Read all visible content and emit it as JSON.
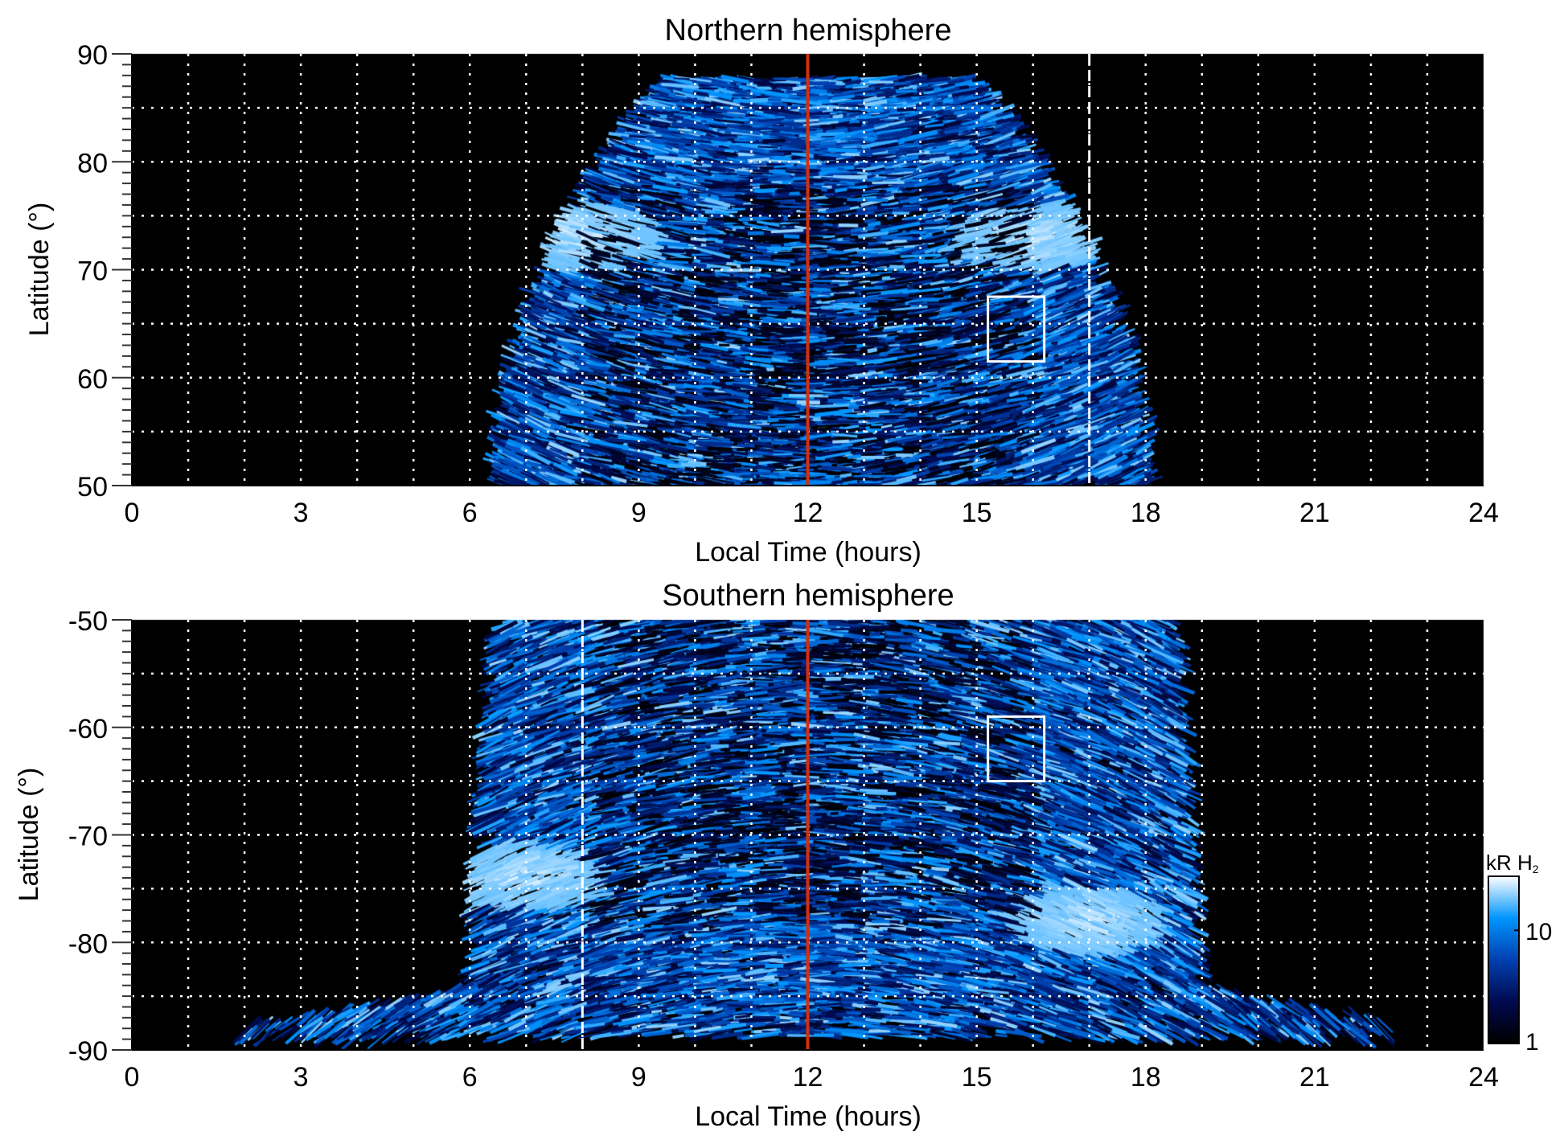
{
  "chart_data": [
    {
      "type": "heatmap",
      "title": "Northern hemisphere",
      "xlabel": "Local Time (hours)",
      "ylabel": "Latitude (°)",
      "xlim": [
        0,
        24
      ],
      "ylim": [
        50,
        90
      ],
      "xticks": [
        "0",
        "3",
        "6",
        "9",
        "12",
        "15",
        "18",
        "21",
        "24"
      ],
      "yticks": [
        "50",
        "60",
        "70",
        "80",
        "90"
      ],
      "grid": true,
      "annotations": {
        "red_line_local_time": 12,
        "dashed_line_local_time": 17,
        "box": {
          "lt": [
            15.2,
            16.2
          ],
          "lat": [
            61.5,
            67.5
          ]
        }
      },
      "emission_extent": {
        "lt_at_lat50": [
          6.5,
          18
        ],
        "lt_at_lat87": [
          9.5,
          15
        ]
      },
      "bright_ovals": [
        {
          "lt": 8,
          "lat": 73
        },
        {
          "lt": 16,
          "lat": 73
        }
      ]
    },
    {
      "type": "heatmap",
      "title": "Southern hemisphere",
      "xlabel": "Local Time (hours)",
      "ylabel": "Latitude (°)",
      "xlim": [
        0,
        24
      ],
      "ylim": [
        -90,
        -50
      ],
      "xticks": [
        "0",
        "3",
        "6",
        "9",
        "12",
        "15",
        "18",
        "21",
        "24"
      ],
      "yticks": [
        "-50",
        "-60",
        "-70",
        "-80",
        "-90"
      ],
      "grid": true,
      "annotations": {
        "red_line_local_time": 12,
        "dashed_line_local_time": 8,
        "box": {
          "lt": [
            15.2,
            16.2
          ],
          "lat": [
            -65,
            -59
          ]
        }
      },
      "emission_extent": {
        "lt_at_lat-50": [
          6.5,
          18.5
        ],
        "lt_at_lat-88": [
          2,
          22
        ]
      },
      "bright_ovals": [
        {
          "lt": 7,
          "lat": -74
        },
        {
          "lt": 17,
          "lat": -78
        }
      ]
    }
  ],
  "colorbar": {
    "label": "kR H",
    "label_sub": "2",
    "scale": "log",
    "range": [
      1,
      30
    ],
    "ticks": [
      "1",
      "10"
    ],
    "colors": [
      "#000000",
      "#000a50",
      "#0040b0",
      "#0096ff",
      "#ffffff"
    ]
  },
  "colors": {
    "red_line": "#d03010",
    "grid": "#ffffff",
    "background": "#000000"
  }
}
